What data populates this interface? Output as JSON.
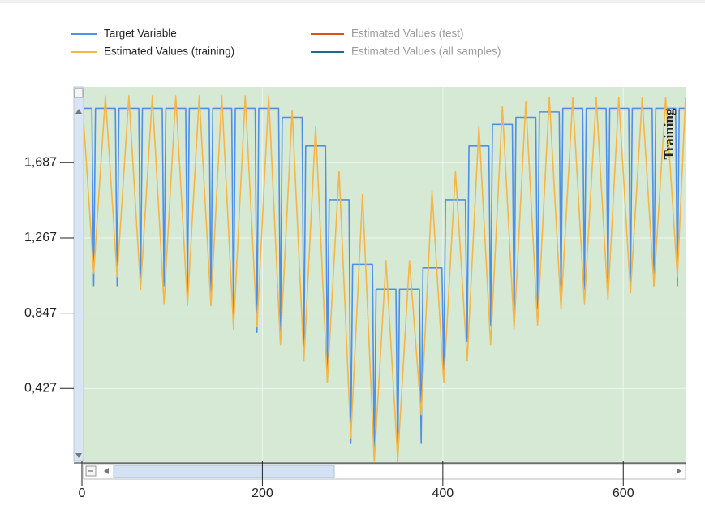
{
  "chart_data": {
    "type": "line",
    "annotation": "Training",
    "legend_position": "top",
    "grid": true,
    "xlim": [
      0,
      669
    ],
    "ylim": [
      0.02,
      2.11
    ],
    "xticks": [
      0,
      200,
      400,
      600
    ],
    "yticks": [
      {
        "value": 0.427,
        "label": "0,427"
      },
      {
        "value": 0.847,
        "label": "0,847"
      },
      {
        "value": 1.267,
        "label": "1,267"
      },
      {
        "value": 1.687,
        "label": "1,687"
      }
    ],
    "series": [
      {
        "name": "Target Variable",
        "color": "#4f8fe6",
        "x": [
          0,
          3,
          11,
          13,
          15,
          29,
          37,
          39,
          41,
          55,
          63,
          65,
          67,
          81,
          89,
          91,
          93,
          107,
          115,
          117,
          119,
          133,
          141,
          143,
          145,
          158,
          166,
          168,
          170,
          184,
          192,
          194,
          196,
          210,
          218,
          220,
          222,
          236,
          244,
          246,
          248,
          262,
          270,
          272,
          274,
          288,
          296,
          298,
          300,
          314,
          322,
          324,
          326,
          340,
          348,
          350,
          352,
          366,
          374,
          376,
          378,
          391,
          399,
          401,
          403,
          417,
          425,
          427,
          429,
          443,
          451,
          453,
          455,
          469,
          477,
          479,
          481,
          495,
          503,
          505,
          507,
          521,
          529,
          531,
          533,
          547,
          555,
          557,
          559,
          573,
          581,
          583,
          585,
          598,
          606,
          608,
          610,
          624,
          632,
          634,
          636,
          650,
          658,
          660,
          662,
          669
        ],
        "values": [
          1.99,
          1.99,
          1.99,
          1.0,
          1.99,
          1.99,
          1.99,
          1.0,
          1.99,
          1.99,
          1.99,
          1.0,
          1.99,
          1.99,
          1.99,
          1.0,
          1.99,
          1.99,
          1.99,
          0.96,
          1.99,
          1.99,
          1.99,
          0.89,
          1.99,
          1.99,
          1.99,
          0.78,
          1.99,
          1.99,
          1.99,
          0.74,
          1.99,
          1.99,
          1.99,
          0.69,
          1.94,
          1.94,
          1.94,
          0.6,
          1.78,
          1.78,
          1.78,
          0.53,
          1.48,
          1.48,
          1.48,
          0.12,
          1.12,
          1.12,
          1.12,
          0.03,
          0.98,
          0.98,
          0.98,
          0.02,
          0.98,
          0.98,
          0.98,
          0.12,
          1.1,
          1.1,
          1.1,
          0.51,
          1.48,
          1.48,
          1.48,
          0.69,
          1.78,
          1.78,
          1.78,
          0.78,
          1.9,
          1.9,
          1.9,
          0.78,
          1.94,
          1.94,
          1.94,
          0.87,
          1.97,
          1.97,
          1.97,
          0.92,
          1.99,
          1.99,
          1.99,
          0.98,
          1.99,
          1.99,
          1.99,
          1.0,
          1.99,
          1.99,
          1.99,
          1.0,
          1.99,
          1.99,
          1.99,
          1.0,
          1.99,
          1.99,
          1.99,
          1.0,
          1.99,
          1.99
        ]
      },
      {
        "name": "Estimated Values (training)",
        "color": "#f5b547",
        "x": [
          0,
          13,
          26,
          39,
          52,
          65,
          78,
          91,
          104,
          117,
          130,
          143,
          155,
          168,
          181,
          194,
          207,
          220,
          233,
          246,
          259,
          272,
          285,
          298,
          311,
          324,
          337,
          350,
          363,
          376,
          388,
          401,
          414,
          427,
          440,
          453,
          466,
          479,
          492,
          505,
          518,
          531,
          544,
          557,
          570,
          583,
          595,
          608,
          621,
          634,
          647,
          660,
          669
        ],
        "values": [
          2.06,
          1.07,
          2.06,
          1.05,
          2.06,
          0.98,
          2.06,
          0.9,
          2.06,
          0.89,
          2.06,
          0.89,
          2.06,
          0.76,
          2.06,
          0.77,
          2.06,
          0.67,
          1.98,
          0.58,
          1.89,
          0.46,
          1.64,
          0.15,
          1.51,
          0.02,
          1.14,
          0.03,
          1.14,
          0.28,
          1.53,
          0.46,
          1.64,
          0.58,
          1.89,
          0.67,
          2.0,
          0.76,
          2.03,
          0.78,
          2.05,
          0.87,
          2.05,
          0.9,
          2.05,
          0.92,
          2.05,
          0.96,
          2.05,
          1.0,
          2.05,
          1.05,
          2.05
        ]
      },
      {
        "name": "Estimated Values (test)",
        "color": "#d9531e",
        "x": [],
        "values": []
      },
      {
        "name": "Estimated Values (all samples)",
        "color": "#1d6a8c",
        "x": [],
        "values": []
      }
    ]
  }
}
